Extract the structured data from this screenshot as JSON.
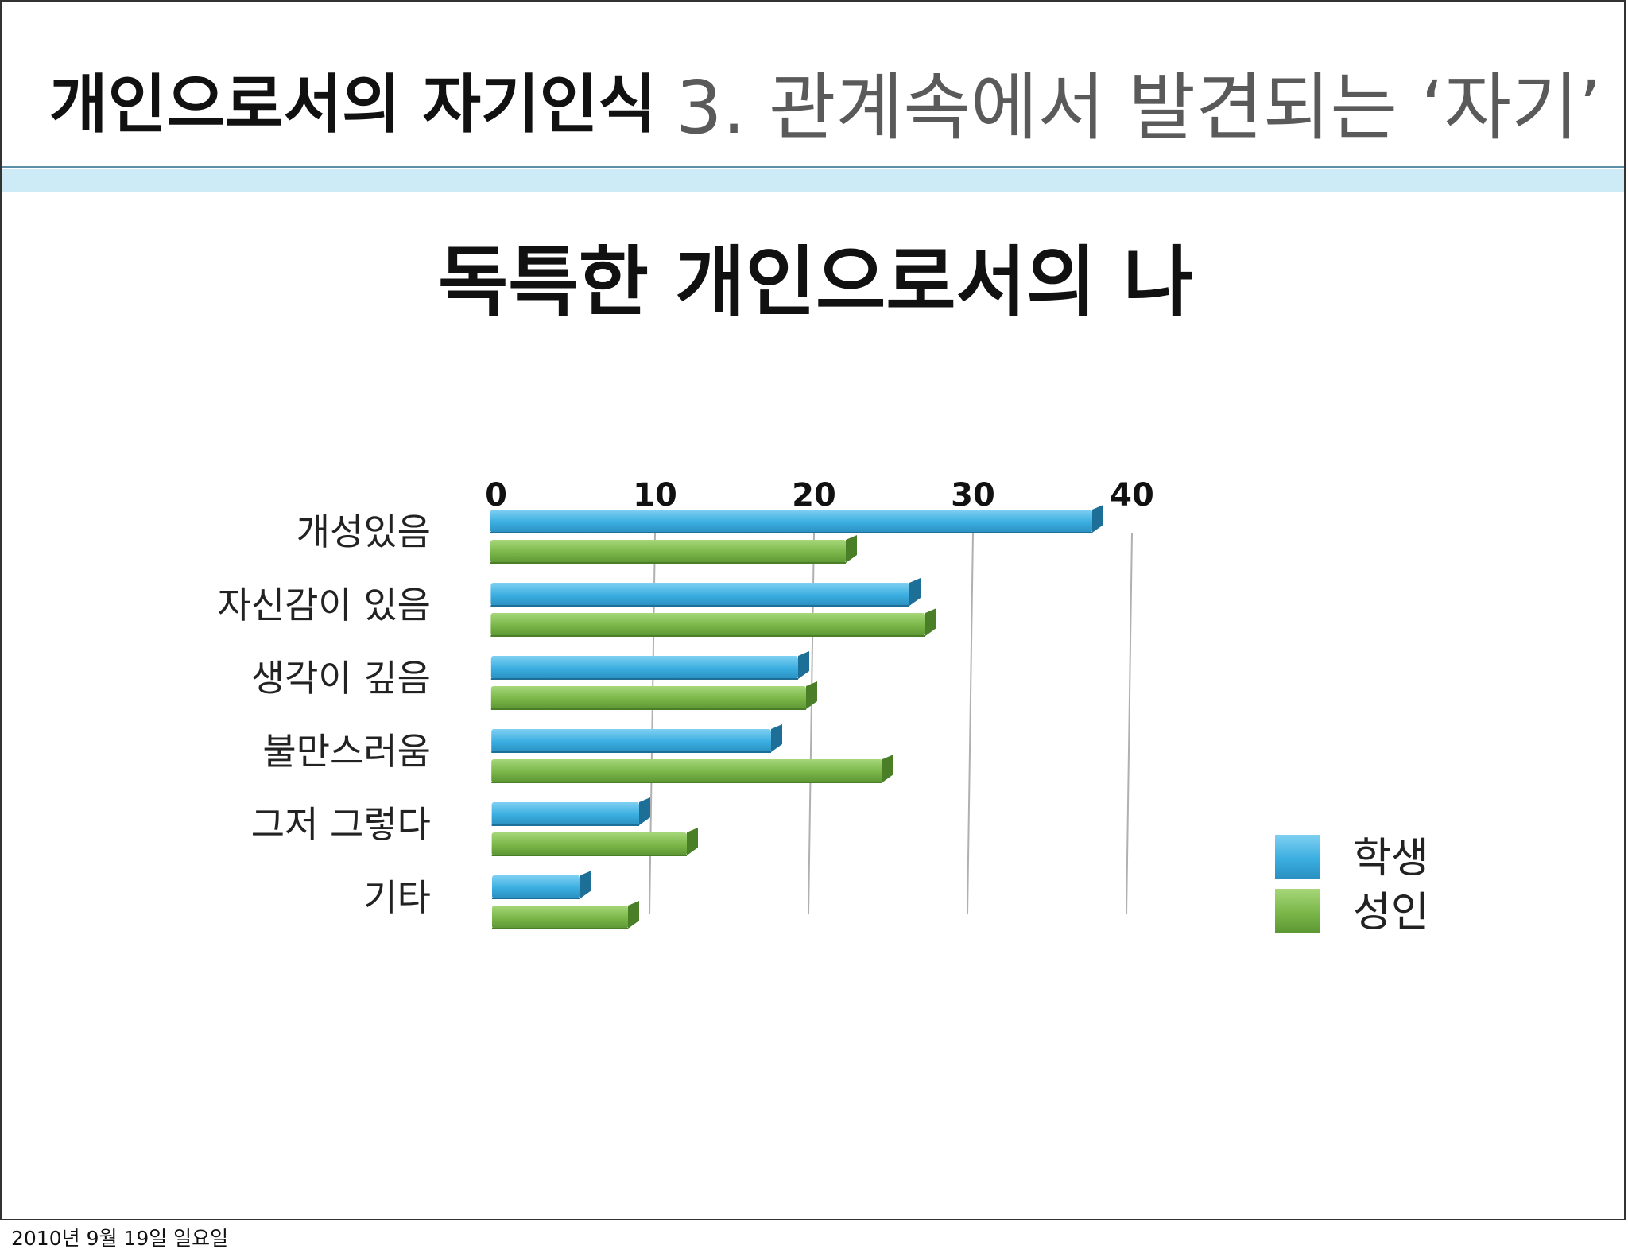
{
  "header": {
    "title": "개인으로서의 자기인식",
    "section": "3. 관계속에서 발견되는 ‘자기’"
  },
  "footer": {
    "date": "2010년 9월 19일 일요일"
  },
  "colors": {
    "student": "#3aaee0",
    "adult": "#7ab648",
    "header_bar": "#cdeaf7",
    "grid": "#b0b0b0"
  },
  "chart_data": {
    "type": "bar",
    "orientation": "horizontal",
    "style": "3d",
    "title": "독특한 개인으로서의 나",
    "xlabel": "",
    "ylabel": "",
    "xlim": [
      0,
      40
    ],
    "ticks": [
      0,
      10,
      20,
      30,
      40
    ],
    "tick_labels": [
      "0",
      "10",
      "20",
      "30",
      "40"
    ],
    "tick_position": "top",
    "grid": true,
    "legend_position": "right",
    "categories": [
      "개성있음",
      "자신감이 있음",
      "생각이 깊음",
      "불만스러움",
      "그저 그렇다",
      "기타"
    ],
    "series": [
      {
        "name": "학생",
        "color": "#3aaee0",
        "values": [
          38,
          26.5,
          19.5,
          17.8,
          9.5,
          5.8
        ]
      },
      {
        "name": "성인",
        "color": "#7ab648",
        "values": [
          22.5,
          27.5,
          20,
          24.8,
          12.5,
          8.8
        ]
      }
    ]
  }
}
